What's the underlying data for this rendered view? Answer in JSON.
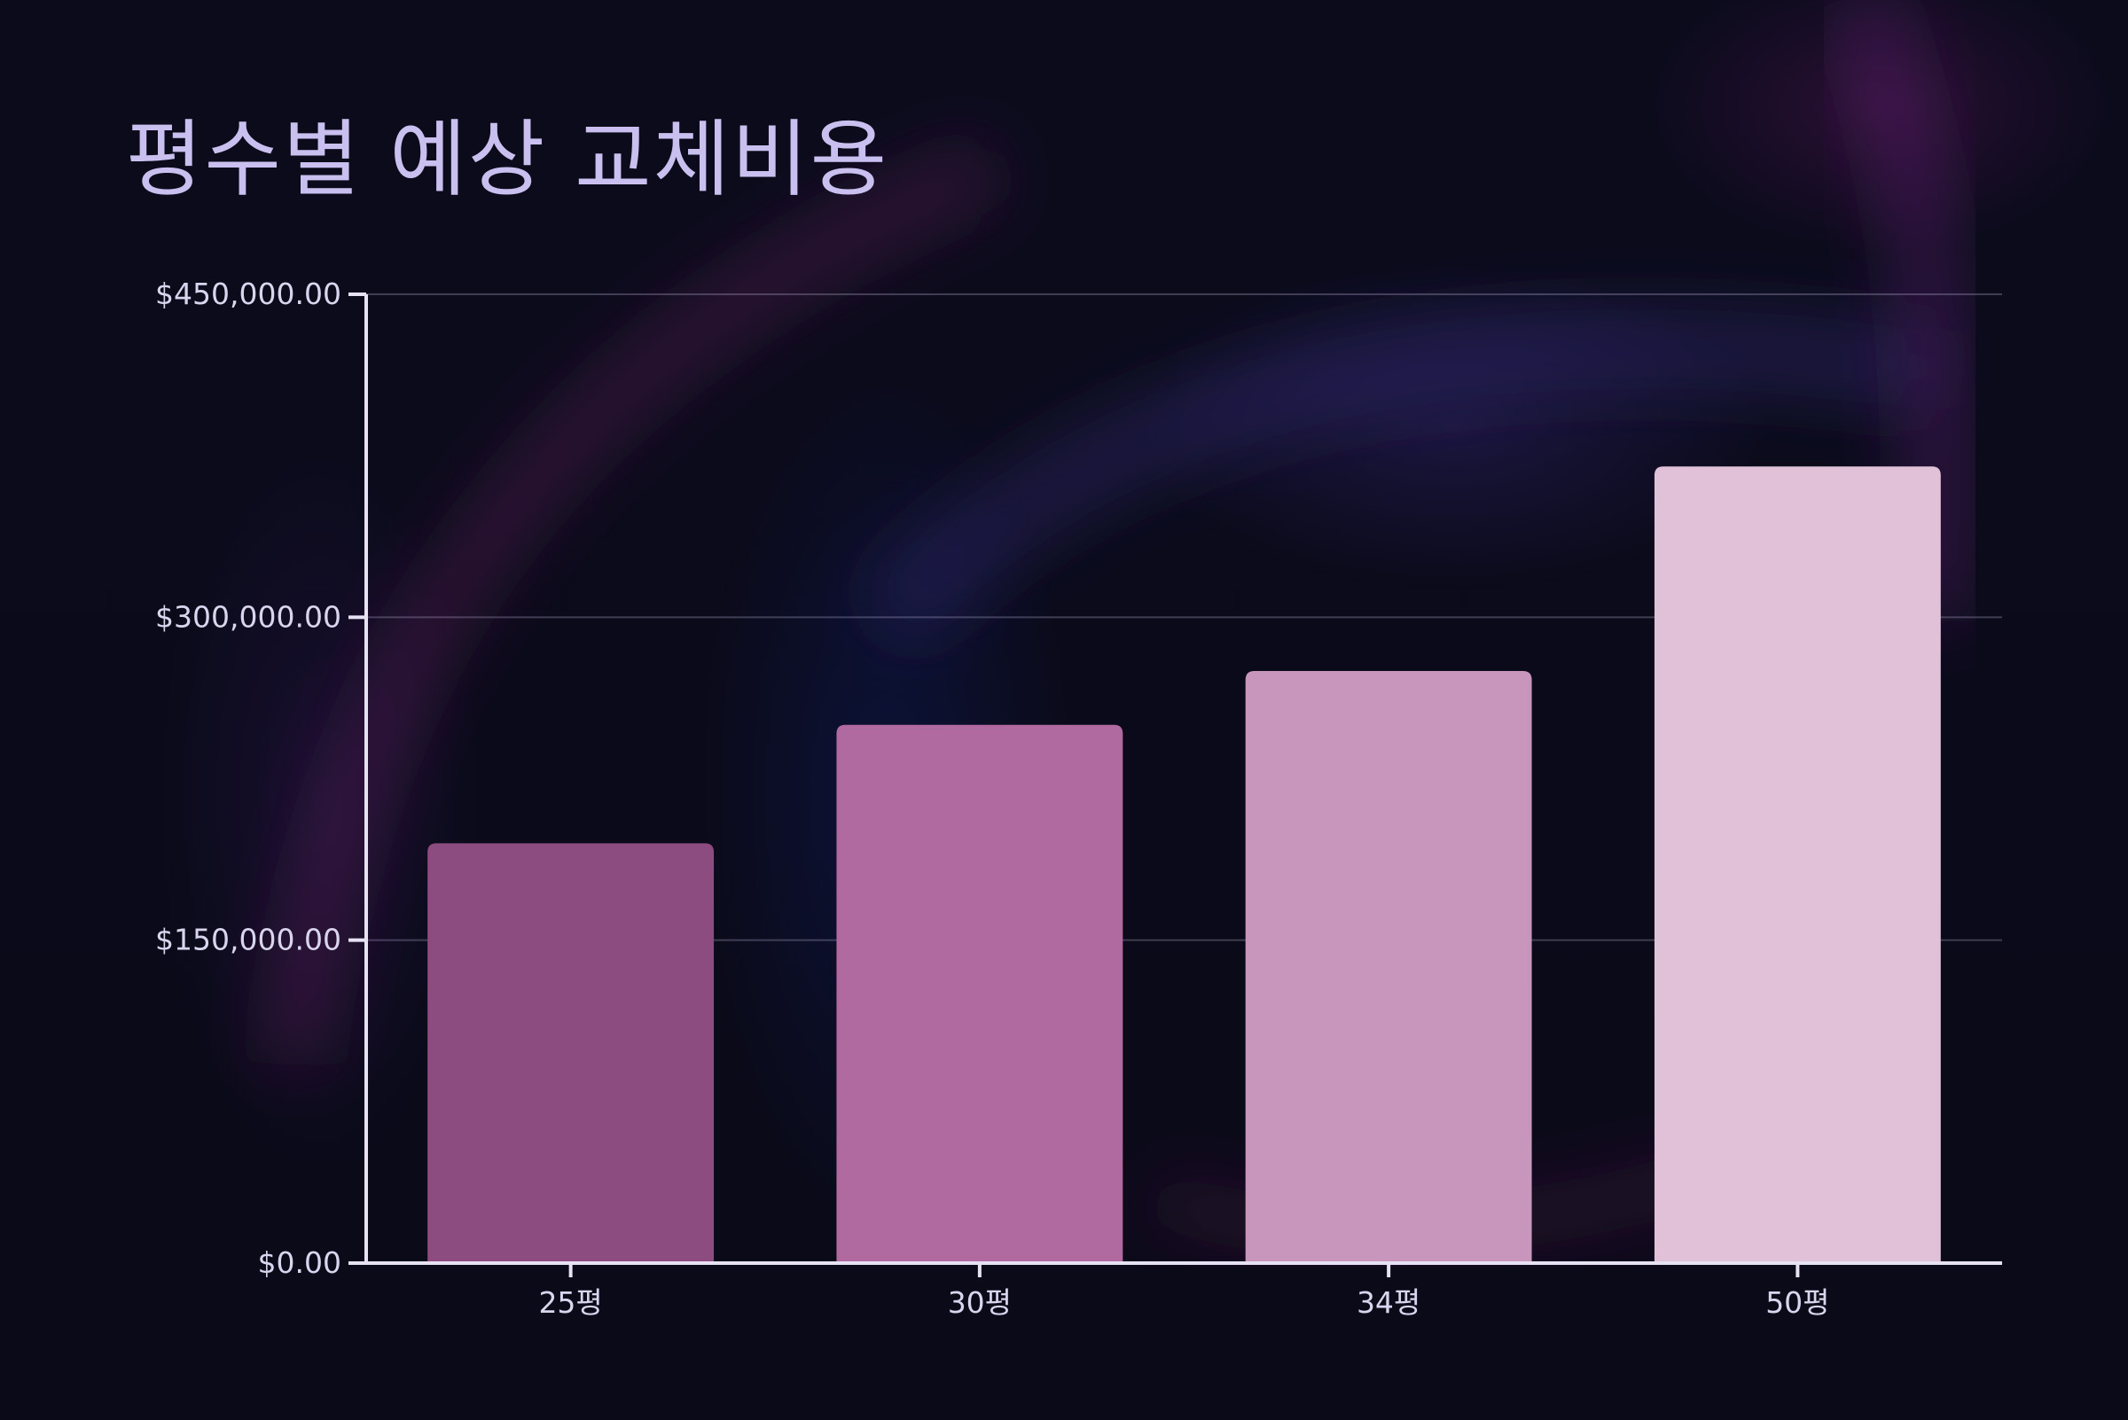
{
  "chart_data": {
    "type": "bar",
    "title": "평수별 예상 교체비용",
    "xlabel": "",
    "ylabel": "",
    "categories": [
      "25평",
      "30평",
      "34평",
      "50평"
    ],
    "values": [
      195000,
      250000,
      275000,
      370000
    ],
    "ylim": [
      0,
      450000
    ],
    "yticks": [
      0,
      150000,
      300000,
      450000
    ],
    "ytick_labels": [
      "$0.00",
      "$150,000.00",
      "$300,000.00",
      "$450,000.00"
    ],
    "colors": [
      "#8d4c7f",
      "#b06aa0",
      "#c895bc",
      "#e0c1d8"
    ],
    "grid": true,
    "legend": "none"
  }
}
